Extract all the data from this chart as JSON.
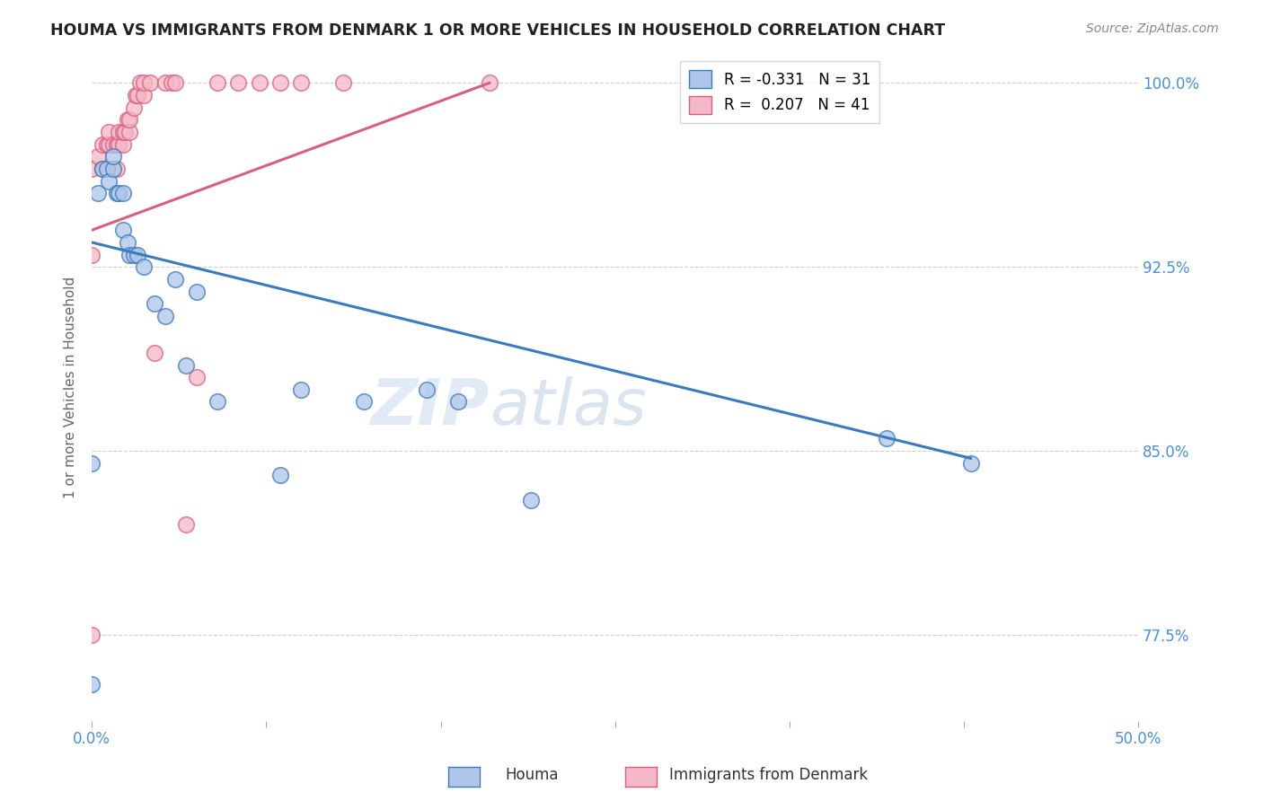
{
  "title": "HOUMA VS IMMIGRANTS FROM DENMARK 1 OR MORE VEHICLES IN HOUSEHOLD CORRELATION CHART",
  "source": "Source: ZipAtlas.com",
  "ylabel": "1 or more Vehicles in Household",
  "xlabel": "",
  "xlim": [
    0.0,
    0.5
  ],
  "ylim": [
    0.74,
    1.012
  ],
  "yticks": [
    0.775,
    0.85,
    0.925,
    1.0
  ],
  "ytick_labels": [
    "77.5%",
    "85.0%",
    "92.5%",
    "100.0%"
  ],
  "xticks": [
    0.0,
    0.0833,
    0.1667,
    0.25,
    0.3333,
    0.4167,
    0.5
  ],
  "xtick_labels": [
    "0.0%",
    "",
    "",
    "",
    "",
    "",
    "50.0%"
  ],
  "houma_R": -0.331,
  "houma_N": 31,
  "denmark_R": 0.207,
  "denmark_N": 41,
  "houma_color": "#aec6e8",
  "denmark_color": "#f5b8c8",
  "houma_line_color": "#3a7abf",
  "denmark_line_color": "#d95f7f",
  "watermark_zip": "ZIP",
  "watermark_atlas": "atlas",
  "houma_x": [
    0.0,
    0.0,
    0.003,
    0.005,
    0.007,
    0.008,
    0.01,
    0.01,
    0.012,
    0.013,
    0.015,
    0.015,
    0.017,
    0.018,
    0.02,
    0.022,
    0.025,
    0.03,
    0.035,
    0.04,
    0.045,
    0.05,
    0.06,
    0.09,
    0.1,
    0.13,
    0.16,
    0.175,
    0.21,
    0.38,
    0.42
  ],
  "houma_y": [
    0.755,
    0.845,
    0.955,
    0.965,
    0.965,
    0.96,
    0.965,
    0.97,
    0.955,
    0.955,
    0.94,
    0.955,
    0.935,
    0.93,
    0.93,
    0.93,
    0.925,
    0.91,
    0.905,
    0.92,
    0.885,
    0.915,
    0.87,
    0.84,
    0.875,
    0.87,
    0.875,
    0.87,
    0.83,
    0.855,
    0.845
  ],
  "denmark_x": [
    0.0,
    0.0,
    0.0,
    0.003,
    0.005,
    0.005,
    0.007,
    0.008,
    0.008,
    0.01,
    0.01,
    0.012,
    0.012,
    0.013,
    0.013,
    0.015,
    0.015,
    0.016,
    0.017,
    0.018,
    0.018,
    0.02,
    0.021,
    0.022,
    0.023,
    0.025,
    0.025,
    0.028,
    0.03,
    0.035,
    0.038,
    0.04,
    0.045,
    0.05,
    0.06,
    0.07,
    0.08,
    0.09,
    0.1,
    0.12,
    0.19
  ],
  "denmark_y": [
    0.775,
    0.93,
    0.965,
    0.97,
    0.965,
    0.975,
    0.975,
    0.975,
    0.98,
    0.965,
    0.975,
    0.965,
    0.975,
    0.975,
    0.98,
    0.975,
    0.98,
    0.98,
    0.985,
    0.98,
    0.985,
    0.99,
    0.995,
    0.995,
    1.0,
    0.995,
    1.0,
    1.0,
    0.89,
    1.0,
    1.0,
    1.0,
    0.82,
    0.88,
    1.0,
    1.0,
    1.0,
    1.0,
    1.0,
    1.0,
    1.0
  ],
  "houma_line_x": [
    0.0,
    0.42
  ],
  "houma_line_y": [
    0.935,
    0.847
  ],
  "denmark_line_x": [
    0.0,
    0.19
  ],
  "denmark_line_y": [
    0.94,
    1.0
  ]
}
